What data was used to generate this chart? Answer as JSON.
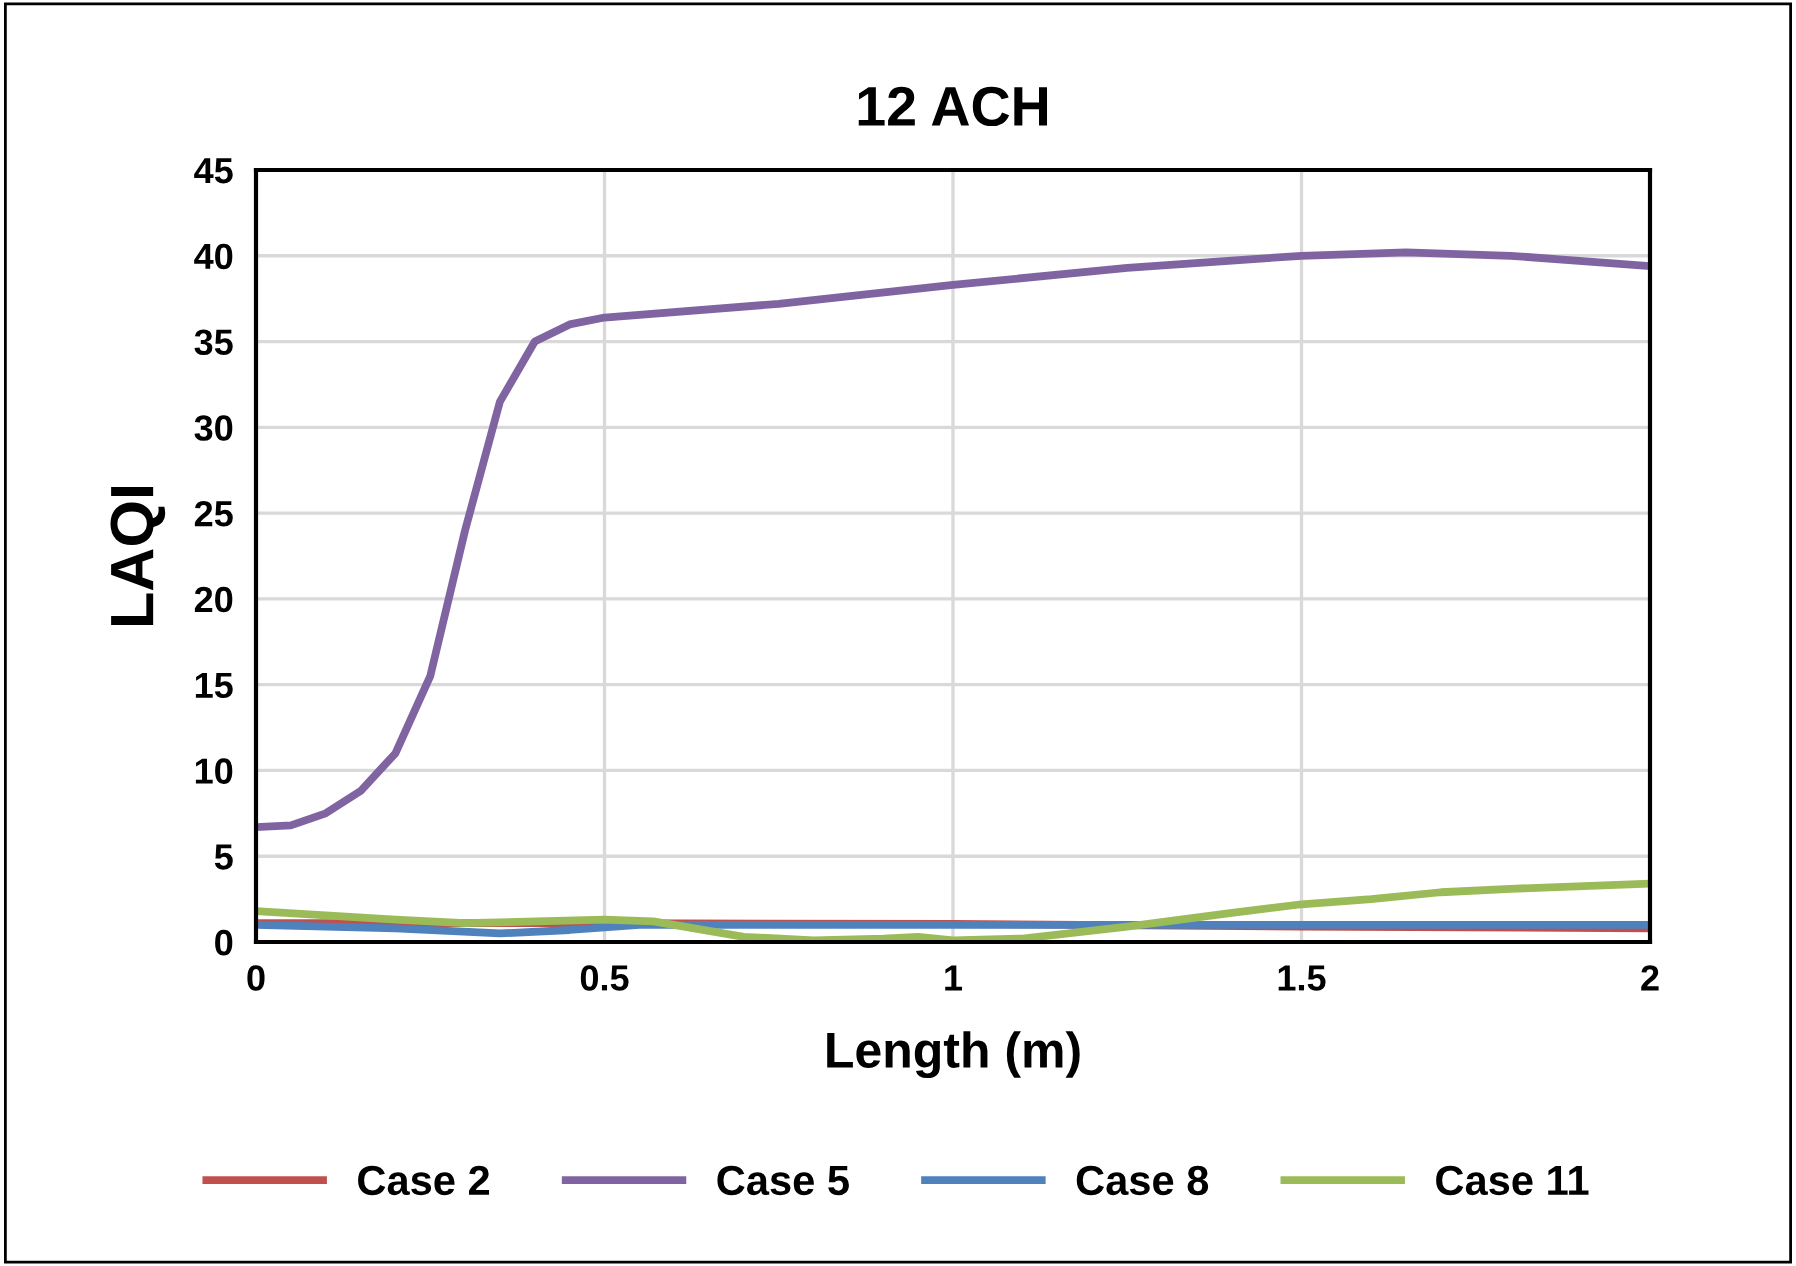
{
  "chart_data": {
    "type": "line",
    "title": "12 ACH",
    "xlabel": "Length (m)",
    "ylabel": "LAQI",
    "xlim": [
      0,
      2
    ],
    "xticks": [
      0,
      0.5,
      1,
      1.5,
      2
    ],
    "ylim": [
      0,
      45
    ],
    "yticks": [
      0,
      5,
      10,
      15,
      20,
      25,
      30,
      35,
      40,
      45
    ],
    "grid": true,
    "legend": "bottom",
    "series": [
      {
        "name": "Case 2",
        "color": "#c0504d",
        "x": [
          0,
          0.5,
          1,
          1.5,
          2
        ],
        "values": [
          1.1,
          1.1,
          1.05,
          0.9,
          0.8
        ]
      },
      {
        "name": "Case 5",
        "color": "#8064a2",
        "x": [
          0,
          0.05,
          0.1,
          0.15,
          0.2,
          0.25,
          0.3,
          0.35,
          0.4,
          0.45,
          0.5,
          0.75,
          1,
          1.25,
          1.5,
          1.65,
          1.8,
          2
        ],
        "values": [
          6.7,
          6.8,
          7.5,
          8.8,
          11,
          15.5,
          24,
          31.5,
          35,
          36,
          36.4,
          37.2,
          38.3,
          39.3,
          40,
          40.2,
          40,
          39.4
        ]
      },
      {
        "name": "Case 8",
        "color": "#4f81bd",
        "x": [
          0,
          0.2,
          0.35,
          0.45,
          0.55,
          1,
          1.5,
          2
        ],
        "values": [
          1.0,
          0.8,
          0.5,
          0.7,
          1.0,
          1.0,
          1.0,
          1.0
        ]
      },
      {
        "name": "Case 11",
        "color": "#9bbb59",
        "x": [
          0,
          0.2,
          0.3,
          0.5,
          0.57,
          0.7,
          0.8,
          0.9,
          0.95,
          1.0,
          1.1,
          1.25,
          1.4,
          1.5,
          1.6,
          1.7,
          1.8,
          2
        ],
        "values": [
          1.8,
          1.3,
          1.1,
          1.3,
          1.2,
          0.3,
          0.1,
          0.2,
          0.3,
          0.1,
          0.2,
          0.9,
          1.7,
          2.2,
          2.5,
          2.9,
          3.1,
          3.4
        ]
      }
    ]
  }
}
